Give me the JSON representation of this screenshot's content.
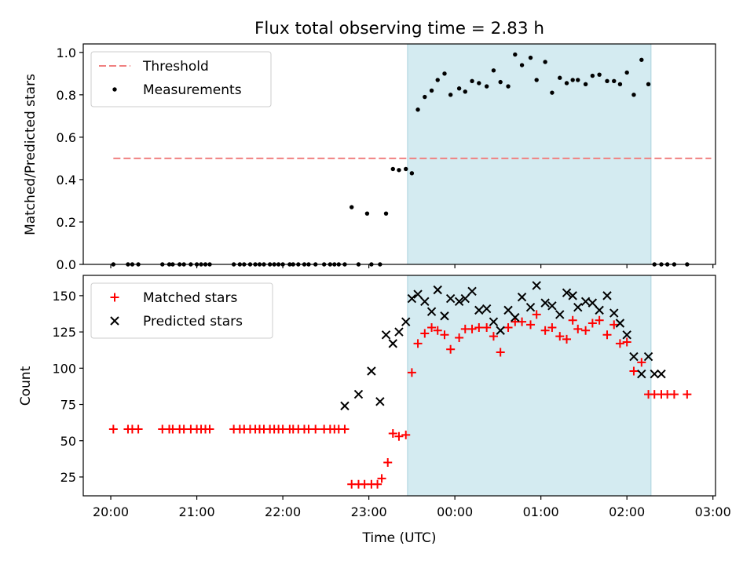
{
  "chart_data": {
    "title": "Flux total observing time = 2.83 h",
    "xlabel": "Time (UTC)",
    "x_ticks": [
      "20:00",
      "21:00",
      "22:00",
      "23:00",
      "00:00",
      "01:00",
      "02:00",
      "03:00"
    ],
    "x_units": "hours since 20:00 UTC",
    "shaded_interval": [
      3.45,
      6.28
    ],
    "shade_color": "#d4ebf1",
    "panels": [
      {
        "type": "scatter",
        "ylabel": "Matched/Predicted stars",
        "ylim": [
          0,
          1.04
        ],
        "y_ticks": [
          "0.0",
          "0.2",
          "0.4",
          "0.6",
          "0.8",
          "1.0"
        ],
        "legend": "top-left",
        "threshold": {
          "name": "Threshold",
          "value": 0.5,
          "x_range": [
            0.03,
            6.98
          ],
          "color": "#f08080"
        },
        "series": [
          {
            "name": "Measurements",
            "marker": "dot",
            "color": "#000000",
            "x": [
              0.03,
              0.2,
              0.25,
              0.32,
              0.6,
              0.68,
              0.72,
              0.8,
              0.85,
              0.93,
              1.0,
              1.05,
              1.1,
              1.15,
              1.43,
              1.5,
              1.55,
              1.62,
              1.68,
              1.73,
              1.78,
              1.85,
              1.9,
              1.95,
              2.0,
              2.08,
              2.12,
              2.18,
              2.25,
              2.3,
              2.38,
              2.48,
              2.55,
              2.6,
              2.65,
              2.72,
              2.8,
              2.88,
              2.98,
              3.03,
              3.13,
              3.2,
              3.28,
              3.35,
              3.43,
              3.5,
              3.57,
              3.65,
              3.73,
              3.8,
              3.88,
              3.95,
              4.05,
              4.12,
              4.2,
              4.28,
              4.37,
              4.45,
              4.53,
              4.62,
              4.7,
              4.78,
              4.88,
              4.95,
              5.05,
              5.13,
              5.22,
              5.3,
              5.37,
              5.43,
              5.52,
              5.6,
              5.68,
              5.77,
              5.85,
              5.92,
              6.0,
              6.08,
              6.17,
              6.25,
              6.32,
              6.4,
              6.47,
              6.55,
              6.7
            ],
            "y": [
              0,
              0,
              0,
              0,
              0,
              0,
              0,
              0,
              0,
              0,
              0,
              0,
              0,
              0,
              0,
              0,
              0,
              0,
              0,
              0,
              0,
              0,
              0,
              0,
              0,
              0,
              0,
              0,
              0,
              0,
              0,
              0,
              0,
              0,
              0,
              0,
              0.27,
              0,
              0.24,
              0,
              0,
              0.24,
              0.45,
              0.445,
              0.45,
              0.43,
              0.73,
              0.79,
              0.82,
              0.87,
              0.9,
              0.8,
              0.83,
              0.815,
              0.865,
              0.855,
              0.84,
              0.915,
              0.86,
              0.84,
              0.99,
              0.94,
              0.975,
              0.87,
              0.955,
              0.81,
              0.88,
              0.855,
              0.87,
              0.87,
              0.85,
              0.89,
              0.895,
              0.865,
              0.865,
              0.85,
              0.905,
              0.8,
              0.965,
              0.85,
              0,
              0,
              0,
              0,
              0
            ]
          }
        ]
      },
      {
        "type": "scatter",
        "ylabel": "Count",
        "ylim": [
          12,
          164
        ],
        "y_ticks": [
          "25",
          "50",
          "75",
          "100",
          "125",
          "150"
        ],
        "legend": "top-left",
        "series": [
          {
            "name": "Matched stars",
            "marker": "plus",
            "color": "#ff0000",
            "x": [
              0.03,
              0.2,
              0.25,
              0.32,
              0.6,
              0.68,
              0.72,
              0.8,
              0.85,
              0.93,
              1.0,
              1.05,
              1.1,
              1.15,
              1.43,
              1.5,
              1.55,
              1.62,
              1.68,
              1.73,
              1.78,
              1.85,
              1.9,
              1.95,
              2.0,
              2.08,
              2.12,
              2.18,
              2.25,
              2.3,
              2.38,
              2.48,
              2.55,
              2.6,
              2.65,
              2.72,
              2.8,
              2.88,
              2.95,
              3.03,
              3.1,
              3.15,
              3.22,
              3.28,
              3.35,
              3.43,
              3.5,
              3.57,
              3.65,
              3.73,
              3.8,
              3.88,
              3.95,
              4.05,
              4.12,
              4.2,
              4.28,
              4.37,
              4.45,
              4.53,
              4.62,
              4.7,
              4.78,
              4.88,
              4.95,
              5.05,
              5.13,
              5.22,
              5.3,
              5.37,
              5.43,
              5.52,
              5.6,
              5.68,
              5.77,
              5.85,
              5.92,
              6.0,
              6.08,
              6.17,
              6.25,
              6.32,
              6.4,
              6.47,
              6.55,
              6.7
            ],
            "y": [
              58,
              58,
              58,
              58,
              58,
              58,
              58,
              58,
              58,
              58,
              58,
              58,
              58,
              58,
              58,
              58,
              58,
              58,
              58,
              58,
              58,
              58,
              58,
              58,
              58,
              58,
              58,
              58,
              58,
              58,
              58,
              58,
              58,
              58,
              58,
              58,
              20,
              20,
              20,
              20,
              20,
              24,
              35,
              55,
              53,
              54,
              97,
              117,
              124,
              128,
              126,
              123,
              113,
              121,
              127,
              127,
              128,
              128,
              122,
              111,
              128,
              132,
              132,
              130,
              137,
              126,
              128,
              122,
              120,
              133,
              127,
              126,
              131,
              133,
              123,
              130,
              117,
              118,
              98,
              104,
              82,
              82,
              82,
              82,
              82,
              82
            ]
          },
          {
            "name": "Predicted stars",
            "marker": "x",
            "color": "#000000",
            "x": [
              2.72,
              2.88,
              3.03,
              3.13,
              3.2,
              3.28,
              3.35,
              3.43,
              3.5,
              3.57,
              3.65,
              3.73,
              3.8,
              3.88,
              3.95,
              4.05,
              4.12,
              4.2,
              4.28,
              4.37,
              4.45,
              4.53,
              4.62,
              4.7,
              4.78,
              4.88,
              4.95,
              5.05,
              5.13,
              5.22,
              5.3,
              5.37,
              5.43,
              5.52,
              5.6,
              5.68,
              5.77,
              5.85,
              5.92,
              6.0,
              6.08,
              6.17,
              6.25,
              6.32,
              6.4
            ],
            "y": [
              74,
              82,
              98,
              77,
              123,
              117,
              125,
              132,
              148,
              151,
              146,
              139,
              154,
              136,
              148,
              146,
              148,
              153,
              140,
              141,
              132,
              126,
              140,
              135,
              149,
              142,
              157,
              145,
              143,
              137,
              152,
              150,
              142,
              146,
              145,
              140,
              150,
              138,
              131,
              123,
              108,
              96,
              108,
              96,
              96
            ]
          }
        ]
      }
    ]
  }
}
